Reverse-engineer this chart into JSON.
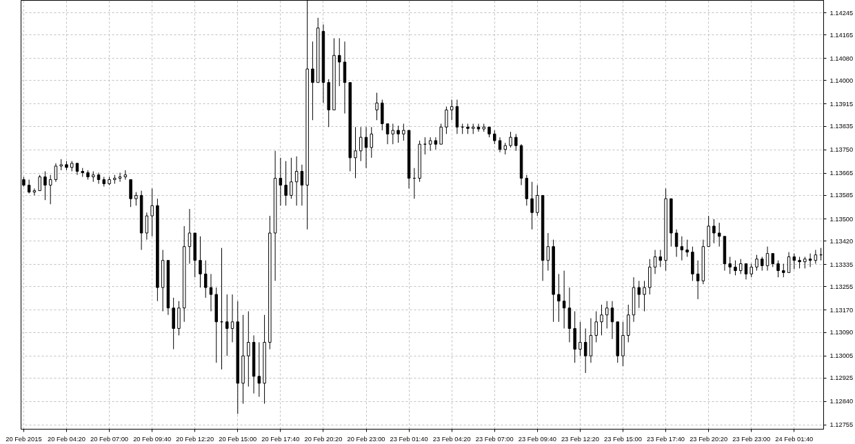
{
  "chart_data": {
    "type": "candlestick",
    "categories": [
      "20 Feb 2015",
      null,
      null,
      null,
      null,
      null,
      null,
      null,
      "20 Feb 04:20",
      null,
      null,
      null,
      null,
      null,
      null,
      null,
      "20 Feb 07:00",
      null,
      null,
      null,
      null,
      null,
      null,
      null,
      "20 Feb 09:40",
      null,
      null,
      null,
      null,
      null,
      null,
      null,
      "20 Feb 12:20",
      null,
      null,
      null,
      null,
      null,
      null,
      null,
      "20 Feb 15:00",
      null,
      null,
      null,
      null,
      null,
      null,
      null,
      "20 Feb 17:40",
      null,
      null,
      null,
      null,
      null,
      null,
      null,
      "20 Feb 20:20",
      null,
      null,
      null,
      null,
      null,
      null,
      null,
      "20 Feb 23:00",
      null,
      null,
      null,
      null,
      null,
      null,
      null,
      "23 Feb 01:40",
      null,
      null,
      null,
      null,
      null,
      null,
      null,
      "23 Feb 04:20",
      null,
      null,
      null,
      null,
      null,
      null,
      null,
      "23 Feb 07:00",
      null,
      null,
      null,
      null,
      null,
      null,
      null,
      "23 Feb 09:40",
      null,
      null,
      null,
      null,
      null,
      null,
      null,
      "23 Feb 12:20",
      null,
      null,
      null,
      null,
      null,
      null,
      null,
      "23 Feb 15:00",
      null,
      null,
      null,
      null,
      null,
      null,
      null,
      "23 Feb 17:40",
      null,
      null,
      null,
      null,
      null,
      null,
      null,
      "23 Feb 20:20",
      null,
      null,
      null,
      null,
      null,
      null,
      null,
      "23 Feb 23:00",
      null,
      null,
      null,
      null,
      null,
      null,
      null,
      "24 Feb 01:40",
      null,
      null,
      null,
      null,
      null
    ],
    "ohlc": [
      [
        1.13642,
        1.13652,
        1.13617,
        1.13622
      ],
      [
        1.13622,
        1.13642,
        1.13592,
        1.13597
      ],
      [
        1.13597,
        1.1361,
        1.13585,
        1.13602
      ],
      [
        1.13602,
        1.13659,
        1.13602,
        1.13652
      ],
      [
        1.13652,
        1.13672,
        1.13568,
        1.13622
      ],
      [
        1.13622,
        1.13659,
        1.13553,
        1.13642
      ],
      [
        1.13642,
        1.13701,
        1.13634,
        1.13691
      ],
      [
        1.13691,
        1.13716,
        1.13676,
        1.13696
      ],
      [
        1.13696,
        1.13709,
        1.13676,
        1.13686
      ],
      [
        1.13686,
        1.13709,
        1.13672,
        1.13701
      ],
      [
        1.13701,
        1.13701,
        1.13659,
        1.13672
      ],
      [
        1.13672,
        1.13684,
        1.13652,
        1.13667
      ],
      [
        1.13667,
        1.13676,
        1.13642,
        1.13652
      ],
      [
        1.13652,
        1.13672,
        1.13634,
        1.13659
      ],
      [
        1.13659,
        1.13667,
        1.13627,
        1.13642
      ],
      [
        1.13642,
        1.13652,
        1.13617,
        1.13627
      ],
      [
        1.13627,
        1.13652,
        1.13622,
        1.13642
      ],
      [
        1.13642,
        1.13659,
        1.13627,
        1.13647
      ],
      [
        1.13647,
        1.13667,
        1.13634,
        1.13652
      ],
      [
        1.13652,
        1.13676,
        1.13642,
        1.13659
      ],
      [
        1.13642,
        1.13642,
        1.13543,
        1.13573
      ],
      [
        1.13573,
        1.13597,
        1.13548,
        1.13585
      ],
      [
        1.13585,
        1.13602,
        1.13388,
        1.13449
      ],
      [
        1.13449,
        1.13523,
        1.13425,
        1.13511
      ],
      [
        1.13511,
        1.1361,
        1.13437,
        1.13548
      ],
      [
        1.13548,
        1.13573,
        1.13203,
        1.13252
      ],
      [
        1.13252,
        1.13388,
        1.13166,
        1.1335
      ],
      [
        1.1335,
        1.1335,
        1.13153,
        1.13178
      ],
      [
        1.13178,
        1.13215,
        1.13029,
        1.13104
      ],
      [
        1.13104,
        1.13203,
        1.13079,
        1.13178
      ],
      [
        1.13178,
        1.13474,
        1.13128,
        1.134
      ],
      [
        1.134,
        1.13536,
        1.13338,
        1.13449
      ],
      [
        1.13449,
        1.13449,
        1.13289,
        1.1335
      ],
      [
        1.1335,
        1.13437,
        1.13252,
        1.13301
      ],
      [
        1.13301,
        1.1335,
        1.13215,
        1.13252
      ],
      [
        1.13252,
        1.13301,
        1.13166,
        1.13227
      ],
      [
        1.13227,
        1.13252,
        1.1298,
        1.13128
      ],
      [
        1.13128,
        1.13395,
        1.12956,
        1.13128
      ],
      [
        1.13128,
        1.13227,
        1.13005,
        1.13104
      ],
      [
        1.13104,
        1.13227,
        1.13054,
        1.13128
      ],
      [
        1.13128,
        1.13203,
        1.12795,
        1.12906
      ],
      [
        1.12906,
        1.13153,
        1.12832,
        1.13005
      ],
      [
        1.13005,
        1.13166,
        1.12894,
        1.13054
      ],
      [
        1.13054,
        1.13079,
        1.12869,
        1.12931
      ],
      [
        1.12931,
        1.13054,
        1.12857,
        1.12906
      ],
      [
        1.12906,
        1.13153,
        1.12832,
        1.13054
      ],
      [
        1.13054,
        1.13511,
        1.13029,
        1.13449
      ],
      [
        1.13449,
        1.13746,
        1.13276,
        1.13647
      ],
      [
        1.13647,
        1.13721,
        1.13548,
        1.13622
      ],
      [
        1.13622,
        1.13709,
        1.13548,
        1.13585
      ],
      [
        1.13585,
        1.13721,
        1.13573,
        1.13634
      ],
      [
        1.13634,
        1.13726,
        1.13548,
        1.13672
      ],
      [
        1.13672,
        1.13696,
        1.13548,
        1.13622
      ],
      [
        1.13622,
        1.14289,
        1.13462,
        1.14042
      ],
      [
        1.14042,
        1.14141,
        1.13857,
        1.13993
      ],
      [
        1.13993,
        1.14227,
        1.13993,
        1.1419
      ],
      [
        1.14178,
        1.14203,
        1.13919,
        1.13993
      ],
      [
        1.13993,
        1.14005,
        1.13832,
        1.13894
      ],
      [
        1.13894,
        1.14153,
        1.13894,
        1.14091
      ],
      [
        1.14091,
        1.14153,
        1.1398,
        1.14067
      ],
      [
        1.14067,
        1.14141,
        1.13881,
        1.13993
      ],
      [
        1.13993,
        1.13993,
        1.13672,
        1.13721
      ],
      [
        1.13721,
        1.13832,
        1.13647,
        1.13746
      ],
      [
        1.13746,
        1.13832,
        1.13709,
        1.13795
      ],
      [
        1.13795,
        1.13832,
        1.13684,
        1.13758
      ],
      [
        1.13758,
        1.13832,
        1.13721,
        1.13807
      ],
      [
        1.13894,
        1.13956,
        1.13857,
        1.13919
      ],
      [
        1.13919,
        1.13931,
        1.1382,
        1.13844
      ],
      [
        1.13844,
        1.13844,
        1.1377,
        1.13807
      ],
      [
        1.13807,
        1.13844,
        1.1377,
        1.1382
      ],
      [
        1.1382,
        1.13837,
        1.13775,
        1.13807
      ],
      [
        1.13807,
        1.13844,
        1.13783,
        1.1382
      ],
      [
        1.1382,
        1.1382,
        1.1361,
        1.13647
      ],
      [
        1.13647,
        1.13684,
        1.13573,
        1.13647
      ],
      [
        1.13647,
        1.13783,
        1.13634,
        1.1377
      ],
      [
        1.1377,
        1.13795,
        1.13733,
        1.1377
      ],
      [
        1.1377,
        1.13795,
        1.13746,
        1.13783
      ],
      [
        1.13783,
        1.13795,
        1.13751,
        1.1377
      ],
      [
        1.1377,
        1.13844,
        1.1377,
        1.13832
      ],
      [
        1.13832,
        1.13906,
        1.13807,
        1.13894
      ],
      [
        1.13894,
        1.13931,
        1.13857,
        1.13906
      ],
      [
        1.13906,
        1.13931,
        1.13807,
        1.13832
      ],
      [
        1.13832,
        1.13844,
        1.13807,
        1.13832
      ],
      [
        1.13832,
        1.13844,
        1.13807,
        1.13827
      ],
      [
        1.13827,
        1.13844,
        1.13807,
        1.13832
      ],
      [
        1.13832,
        1.13844,
        1.13815,
        1.13825
      ],
      [
        1.13825,
        1.13844,
        1.13815,
        1.13832
      ],
      [
        1.13832,
        1.13832,
        1.13795,
        1.13807
      ],
      [
        1.13807,
        1.1382,
        1.1377,
        1.13783
      ],
      [
        1.13783,
        1.13795,
        1.13741,
        1.13751
      ],
      [
        1.13751,
        1.13775,
        1.13733,
        1.13765
      ],
      [
        1.13765,
        1.13815,
        1.13758,
        1.13795
      ],
      [
        1.13795,
        1.13807,
        1.13746,
        1.13765
      ],
      [
        1.13765,
        1.1377,
        1.13622,
        1.13647
      ],
      [
        1.13647,
        1.13659,
        1.13548,
        1.13573
      ],
      [
        1.13573,
        1.13634,
        1.13462,
        1.13523
      ],
      [
        1.13523,
        1.13622,
        1.13511,
        1.13585
      ],
      [
        1.13585,
        1.13585,
        1.13276,
        1.1335
      ],
      [
        1.1335,
        1.13449,
        1.13313,
        1.134
      ],
      [
        1.134,
        1.13425,
        1.13128,
        1.13227
      ],
      [
        1.13227,
        1.13301,
        1.13128,
        1.13203
      ],
      [
        1.13203,
        1.13313,
        1.13104,
        1.13178
      ],
      [
        1.13178,
        1.13252,
        1.13054,
        1.13104
      ],
      [
        1.13104,
        1.13166,
        1.1298,
        1.13029
      ],
      [
        1.13029,
        1.13128,
        1.13005,
        1.13054
      ],
      [
        1.13054,
        1.13104,
        1.12943,
        1.13005
      ],
      [
        1.13005,
        1.13141,
        1.1298,
        1.13079
      ],
      [
        1.13079,
        1.13166,
        1.13054,
        1.13128
      ],
      [
        1.13128,
        1.1319,
        1.13079,
        1.13153
      ],
      [
        1.13153,
        1.13203,
        1.13104,
        1.13178
      ],
      [
        1.13178,
        1.13203,
        1.13066,
        1.13128
      ],
      [
        1.13128,
        1.13128,
        1.1298,
        1.13005
      ],
      [
        1.13005,
        1.13128,
        1.12968,
        1.13079
      ],
      [
        1.13079,
        1.1319,
        1.13054,
        1.13153
      ],
      [
        1.13153,
        1.13289,
        1.13128,
        1.13252
      ],
      [
        1.13252,
        1.13276,
        1.13178,
        1.13227
      ],
      [
        1.13227,
        1.13276,
        1.13166,
        1.13252
      ],
      [
        1.13252,
        1.13355,
        1.13227,
        1.13326
      ],
      [
        1.13326,
        1.13388,
        1.13301,
        1.13363
      ],
      [
        1.13363,
        1.13388,
        1.13326,
        1.1335
      ],
      [
        1.1335,
        1.1361,
        1.13313,
        1.13573
      ],
      [
        1.13573,
        1.13573,
        1.134,
        1.13449
      ],
      [
        1.13449,
        1.13462,
        1.13363,
        1.134
      ],
      [
        1.134,
        1.13437,
        1.1335,
        1.13388
      ],
      [
        1.13388,
        1.13425,
        1.13363,
        1.1338
      ],
      [
        1.1338,
        1.134,
        1.13276,
        1.13301
      ],
      [
        1.13301,
        1.1335,
        1.1321,
        1.13276
      ],
      [
        1.13276,
        1.13425,
        1.13264,
        1.134
      ],
      [
        1.134,
        1.13511,
        1.134,
        1.13474
      ],
      [
        1.13474,
        1.13499,
        1.13412,
        1.13449
      ],
      [
        1.13449,
        1.13486,
        1.134,
        1.13437
      ],
      [
        1.13437,
        1.13437,
        1.13313,
        1.13338
      ],
      [
        1.13338,
        1.13363,
        1.13301,
        1.13326
      ],
      [
        1.13326,
        1.1335,
        1.13296,
        1.13313
      ],
      [
        1.13313,
        1.13355,
        1.13301,
        1.13338
      ],
      [
        1.13338,
        1.13338,
        1.13281,
        1.13301
      ],
      [
        1.13301,
        1.13338,
        1.13289,
        1.13326
      ],
      [
        1.13326,
        1.1337,
        1.13313,
        1.13355
      ],
      [
        1.13355,
        1.13363,
        1.13313,
        1.13331
      ],
      [
        1.13331,
        1.134,
        1.13313,
        1.13375
      ],
      [
        1.13375,
        1.13375,
        1.13326,
        1.13338
      ],
      [
        1.13338,
        1.1335,
        1.13289,
        1.13313
      ],
      [
        1.13313,
        1.13338,
        1.13289,
        1.13306
      ],
      [
        1.13306,
        1.1338,
        1.13306,
        1.13363
      ],
      [
        1.13363,
        1.13375,
        1.13318,
        1.1335
      ],
      [
        1.1335,
        1.13363,
        1.13321,
        1.13345
      ],
      [
        1.13345,
        1.13363,
        1.13321,
        1.13355
      ],
      [
        1.13355,
        1.13375,
        1.13326,
        1.1335
      ],
      [
        1.1335,
        1.13388,
        1.13338,
        1.1337
      ],
      [
        1.1337,
        1.13395,
        1.1335,
        1.1337
      ]
    ],
    "color": "#000000",
    "ylim": [
      1.1274,
      1.1429
    ],
    "yticks": [
      1.12755,
      {
        "value": 1.1284,
        "label": "1.12840"
      },
      1.12925,
      1.13005,
      {
        "value": 1.1309,
        "label": "1.13090"
      },
      {
        "value": 1.1317,
        "label": "1.13170"
      },
      1.13255,
      1.13335,
      {
        "value": 1.1342,
        "label": "1.13420"
      },
      {
        "value": 1.135,
        "label": "1.13500"
      },
      1.13585,
      1.13665,
      {
        "value": 1.1375,
        "label": "1.13750"
      },
      1.13835,
      1.13915,
      {
        "value": 1.14,
        "label": "1.14000"
      },
      {
        "value": 1.1408,
        "label": "1.14080"
      },
      1.14165,
      1.14245
    ],
    "grid": true
  }
}
